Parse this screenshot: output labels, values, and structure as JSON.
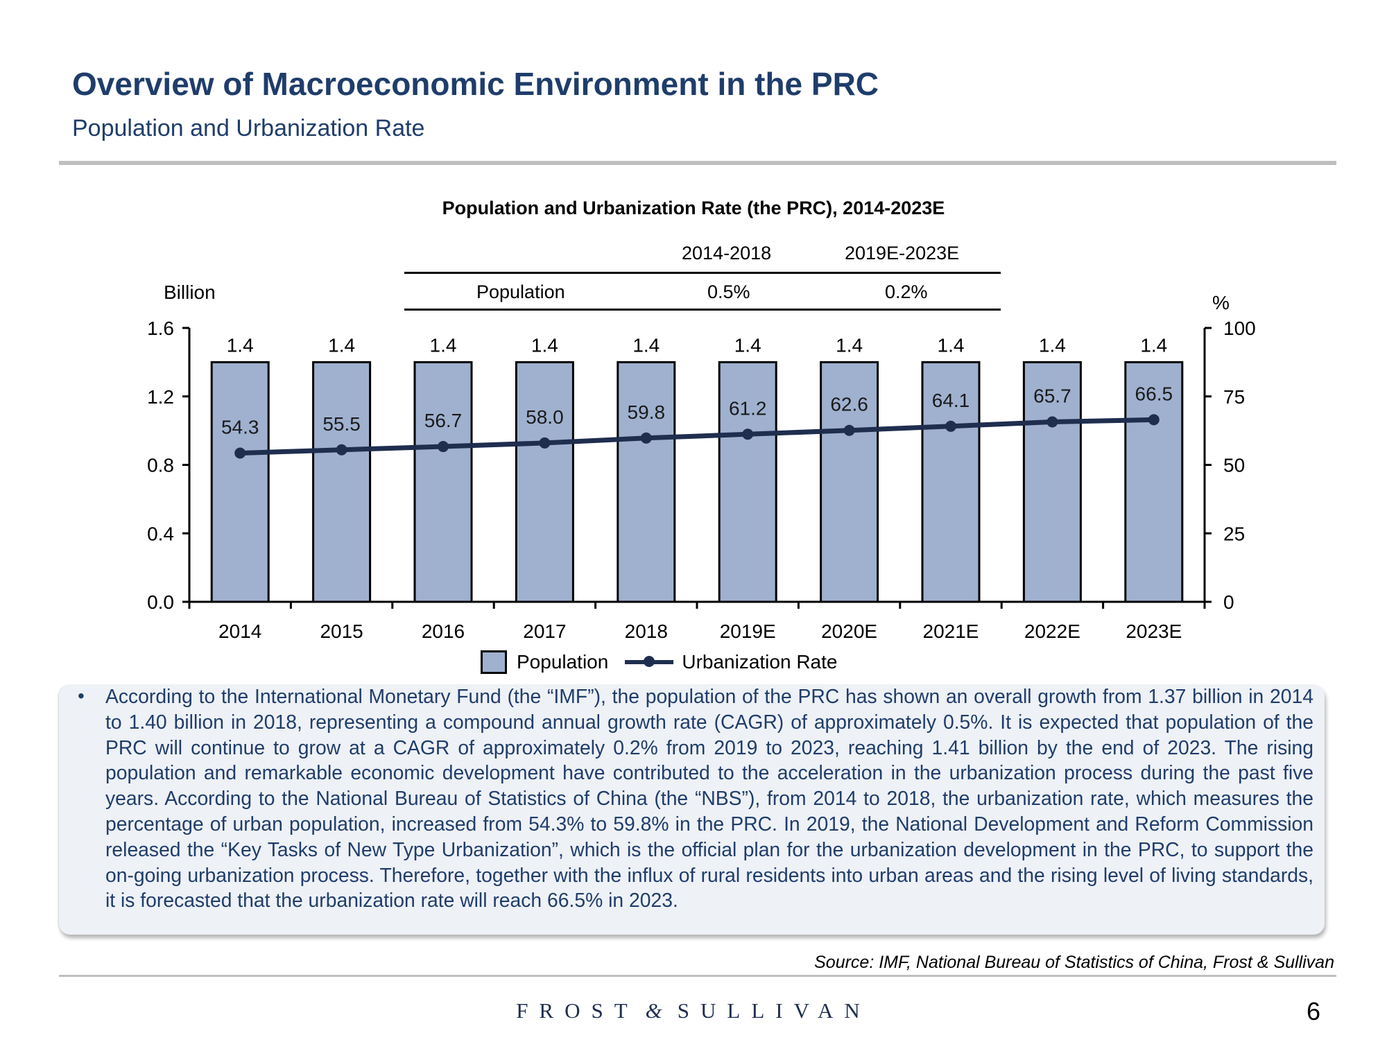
{
  "page": {
    "title": "Overview of Macroeconomic Environment in the PRC",
    "subtitle": "Population and Urbanization Rate",
    "page_number": "6"
  },
  "cagr_table": {
    "periods": [
      "2014-2018",
      "2019E-2023E"
    ],
    "row_label": "Population",
    "values": [
      "0.5%",
      "0.2%"
    ]
  },
  "chart_data": {
    "type": "bar",
    "title": "Population and Urbanization Rate (the PRC), 2014-2023E",
    "categories": [
      "2014",
      "2015",
      "2016",
      "2017",
      "2018",
      "2019E",
      "2020E",
      "2021E",
      "2022E",
      "2023E"
    ],
    "series": [
      {
        "name": "Population",
        "type": "bar",
        "axis": "left",
        "color": "#9fb1cf",
        "values": [
          1.4,
          1.4,
          1.4,
          1.4,
          1.4,
          1.4,
          1.4,
          1.4,
          1.4,
          1.4
        ],
        "labels": [
          "1.4",
          "1.4",
          "1.4",
          "1.4",
          "1.4",
          "1.4",
          "1.4",
          "1.4",
          "1.4",
          "1.4"
        ]
      },
      {
        "name": "Urbanization Rate",
        "type": "line",
        "axis": "right",
        "color": "#1f2e4f",
        "values": [
          54.3,
          55.5,
          56.7,
          58.0,
          59.8,
          61.2,
          62.6,
          64.1,
          65.7,
          66.5
        ],
        "labels": [
          "54.3",
          "55.5",
          "56.7",
          "58.0",
          "59.8",
          "61.2",
          "62.6",
          "64.1",
          "65.7",
          "66.5"
        ]
      }
    ],
    "y_left": {
      "label": "Billion",
      "ylim": [
        0,
        1.6
      ],
      "ticks": [
        "0.0",
        "0.4",
        "0.8",
        "1.2",
        "1.6"
      ]
    },
    "y_right": {
      "label": "%",
      "ylim": [
        0,
        100
      ],
      "ticks": [
        "0",
        "25",
        "50",
        "75",
        "100"
      ]
    },
    "xlabel": "",
    "grid": false,
    "legend": {
      "position": "bottom",
      "entries": [
        "Population",
        "Urbanization Rate"
      ]
    }
  },
  "commentary": "According to the International Monetary Fund (the “IMF”), the population of the PRC has shown an overall growth from 1.37 billion in 2014 to 1.40 billion in 2018, representing a compound annual growth rate (CAGR) of approximately 0.5%. It is expected that population of the PRC will continue to grow at a CAGR of approximately 0.2% from 2019 to 2023, reaching 1.41 billion by the end of 2023. The rising population and remarkable economic development have contributed to the acceleration in the urbanization process during the past five years. According to the National Bureau of Statistics of China (the “NBS”), from 2014 to 2018, the urbanization rate, which measures the percentage of urban population, increased from 54.3% to 59.8% in the PRC. In 2019, the National Development and Reform Commission released the “Key Tasks of New Type Urbanization”, which is the official plan for the urbanization development in the PRC, to support the on-going urbanization process. Therefore, together with the influx of rural residents into urban areas and the rising level of living standards, it is forecasted that the urbanization rate will reach 66.5% in 2023.",
  "bullet_symbol": "•",
  "source": "Source: IMF, National Bureau of Statistics of China, Frost & Sullivan",
  "brand": {
    "left": "FROST",
    "amp": "&",
    "right": "SULLIVAN"
  },
  "colors": {
    "title": "#1f3d6b",
    "bar_fill": "#9fb1cf",
    "line": "#1f2e4f",
    "text_box": "#eef1f6"
  }
}
